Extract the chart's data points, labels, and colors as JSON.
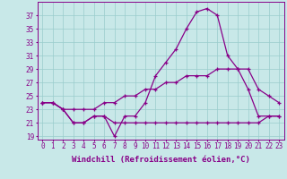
{
  "xlabel": "Windchill (Refroidissement éolien,°C)",
  "x": [
    0,
    1,
    2,
    3,
    4,
    5,
    6,
    7,
    8,
    9,
    10,
    11,
    12,
    13,
    14,
    15,
    16,
    17,
    18,
    19,
    20,
    21,
    22,
    23
  ],
  "line_spike": [
    24,
    24,
    23,
    21,
    21,
    22,
    22,
    19,
    22,
    22,
    24,
    28,
    30,
    32,
    35,
    37.5,
    38,
    37,
    31,
    29,
    26,
    22,
    22,
    22
  ],
  "line_mid": [
    24,
    24,
    23,
    23,
    23,
    23,
    24,
    24,
    25,
    25,
    26,
    26,
    27,
    27,
    28,
    28,
    28,
    29,
    29,
    29,
    29,
    26,
    25,
    24
  ],
  "line_flat": [
    24,
    24,
    23,
    21,
    21,
    22,
    22,
    21,
    21,
    21,
    21,
    21,
    21,
    21,
    21,
    21,
    21,
    21,
    21,
    21,
    21,
    21,
    22,
    22
  ],
  "bg_color": "#c8e8e8",
  "line_color": "#880088",
  "grid_color": "#99cccc",
  "ylim": [
    18.5,
    39
  ],
  "yticks": [
    19,
    21,
    23,
    25,
    27,
    29,
    31,
    33,
    35,
    37
  ],
  "xticks": [
    0,
    1,
    2,
    3,
    4,
    5,
    6,
    7,
    8,
    9,
    10,
    11,
    12,
    13,
    14,
    15,
    16,
    17,
    18,
    19,
    20,
    21,
    22,
    23
  ],
  "tick_fontsize": 5.5,
  "xlabel_fontsize": 6.5,
  "linewidth": 0.9,
  "marker": "+",
  "markersize": 3.5,
  "markeredgewidth": 0.9
}
